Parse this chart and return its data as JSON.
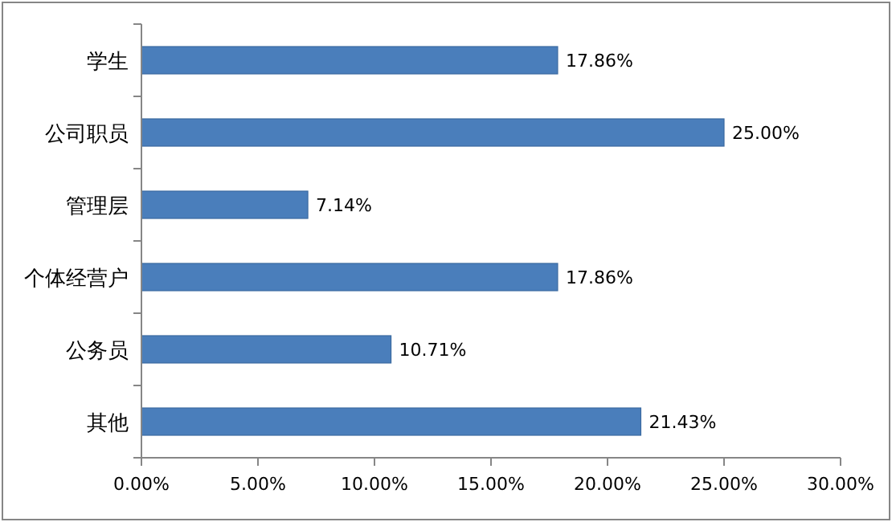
{
  "chart_data": {
    "type": "bar",
    "orientation": "horizontal",
    "categories": [
      "学生",
      "公司职员",
      "管理层",
      "个体经营户",
      "公务员",
      "其他"
    ],
    "values": [
      17.86,
      25.0,
      7.14,
      17.86,
      10.71,
      21.43
    ],
    "value_labels": [
      "17.86%",
      "25.00%",
      "7.14%",
      "17.86%",
      "10.71%",
      "21.43%"
    ],
    "color": "#4a7ebb",
    "xlim": [
      0,
      30
    ],
    "xticks": [
      {
        "value": 0,
        "label": "0.00%"
      },
      {
        "value": 5,
        "label": "5.00%"
      },
      {
        "value": 10,
        "label": "10.00%"
      },
      {
        "value": 15,
        "label": "15.00%"
      },
      {
        "value": 20,
        "label": "20.00%"
      },
      {
        "value": 25,
        "label": "25.00%"
      },
      {
        "value": 30,
        "label": "30.00%"
      }
    ],
    "grid": false
  }
}
